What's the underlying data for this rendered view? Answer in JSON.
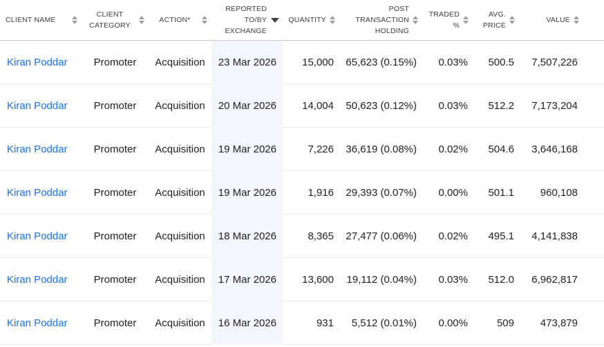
{
  "colors": {
    "link": "#1a73e8",
    "highlight_bg": "#f3f6fd",
    "header_border": "#c9c9c9",
    "row_border": "#e9e9e9",
    "header_text": "#3c4043",
    "cell_text": "#202124",
    "sort_icon": "#9e9e9e",
    "sort_active": "#3c4043"
  },
  "icons": {
    "sort_inactive": "up-down-triangles",
    "sort_active_desc": "filled-caret-down"
  },
  "table": {
    "columns": [
      {
        "label": "CLIENT NAME",
        "align": "left",
        "sort": "none",
        "highlighted": false
      },
      {
        "label": "CLIENT CATEGORY",
        "align": "center",
        "sort": "none",
        "highlighted": false
      },
      {
        "label": "ACTION*",
        "align": "center",
        "sort": "none",
        "highlighted": false
      },
      {
        "label": "REPORTED TO/BY EXCHANGE",
        "align": "right",
        "sort": "desc",
        "highlighted": true
      },
      {
        "label": "QUANTITY",
        "align": "right",
        "sort": "none",
        "highlighted": false
      },
      {
        "label": "POST TRANSACTION HOLDING",
        "align": "right",
        "sort": "none",
        "highlighted": false
      },
      {
        "label": "TRADED %",
        "align": "right",
        "sort": "none",
        "highlighted": false
      },
      {
        "label": "AVG. PRICE",
        "align": "right",
        "sort": "none",
        "highlighted": false
      },
      {
        "label": "VALUE",
        "align": "right",
        "sort": "none",
        "highlighted": false
      }
    ],
    "rows": [
      {
        "client_name": "Kiran Poddar",
        "client_category": "Promoter",
        "action": "Acquisition",
        "reported_date": "23 Mar 2026",
        "quantity": "15,000",
        "post_transaction_holding": "65,623 (0.15%)",
        "traded_pct": "0.03%",
        "avg_price": "500.5",
        "value": "7,507,226"
      },
      {
        "client_name": "Kiran Poddar",
        "client_category": "Promoter",
        "action": "Acquisition",
        "reported_date": "20 Mar 2026",
        "quantity": "14,004",
        "post_transaction_holding": "50,623 (0.12%)",
        "traded_pct": "0.03%",
        "avg_price": "512.2",
        "value": "7,173,204"
      },
      {
        "client_name": "Kiran Poddar",
        "client_category": "Promoter",
        "action": "Acquisition",
        "reported_date": "19 Mar 2026",
        "quantity": "7,226",
        "post_transaction_holding": "36,619 (0.08%)",
        "traded_pct": "0.02%",
        "avg_price": "504.6",
        "value": "3,646,168"
      },
      {
        "client_name": "Kiran Poddar",
        "client_category": "Promoter",
        "action": "Acquisition",
        "reported_date": "19 Mar 2026",
        "quantity": "1,916",
        "post_transaction_holding": "29,393 (0.07%)",
        "traded_pct": "0.00%",
        "avg_price": "501.1",
        "value": "960,108"
      },
      {
        "client_name": "Kiran Poddar",
        "client_category": "Promoter",
        "action": "Acquisition",
        "reported_date": "18 Mar 2026",
        "quantity": "8,365",
        "post_transaction_holding": "27,477 (0.06%)",
        "traded_pct": "0.02%",
        "avg_price": "495.1",
        "value": "4,141,838"
      },
      {
        "client_name": "Kiran Poddar",
        "client_category": "Promoter",
        "action": "Acquisition",
        "reported_date": "17 Mar 2026",
        "quantity": "13,600",
        "post_transaction_holding": "19,112 (0.04%)",
        "traded_pct": "0.03%",
        "avg_price": "512.0",
        "value": "6,962,817"
      },
      {
        "client_name": "Kiran Poddar",
        "client_category": "Promoter",
        "action": "Acquisition",
        "reported_date": "16 Mar 2026",
        "quantity": "931",
        "post_transaction_holding": "5,512 (0.01%)",
        "traded_pct": "0.00%",
        "avg_price": "509",
        "value": "473,879"
      }
    ]
  }
}
